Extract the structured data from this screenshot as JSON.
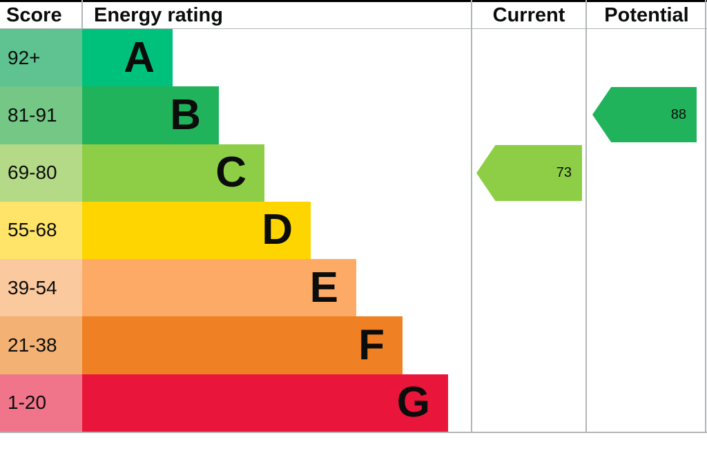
{
  "header": {
    "score": "Score",
    "energy_rating": "Energy rating",
    "current": "Current",
    "potential": "Potential"
  },
  "bands": [
    {
      "score": "92+",
      "letter": "A",
      "color": "#00c17c",
      "tint": "#5ec291"
    },
    {
      "score": "81-91",
      "letter": "B",
      "color": "#21b35b",
      "tint": "#74c784"
    },
    {
      "score": "69-80",
      "letter": "C",
      "color": "#8dce46",
      "tint": "#b4da88"
    },
    {
      "score": "55-68",
      "letter": "D",
      "color": "#ffd500",
      "tint": "#ffe469"
    },
    {
      "score": "39-54",
      "letter": "E",
      "color": "#fcaa65",
      "tint": "#fbc99e"
    },
    {
      "score": "21-38",
      "letter": "F",
      "color": "#ef8023",
      "tint": "#f3b173"
    },
    {
      "score": "1-20",
      "letter": "G",
      "color": "#e9153b",
      "tint": "#f0758a"
    }
  ],
  "current": {
    "value": "73",
    "band": "C"
  },
  "potential": {
    "value": "88",
    "band": "B"
  },
  "chart_data": {
    "type": "bar",
    "title": "Energy rating",
    "columns": [
      "Score",
      "Energy rating",
      "Current",
      "Potential"
    ],
    "categories": [
      "A",
      "B",
      "C",
      "D",
      "E",
      "F",
      "G"
    ],
    "score_ranges": [
      "92+",
      "81-91",
      "69-80",
      "55-68",
      "39-54",
      "21-38",
      "1-20"
    ],
    "band_colors": [
      "#00c17c",
      "#21b35b",
      "#8dce46",
      "#ffd500",
      "#fcaa65",
      "#ef8023",
      "#e9153b"
    ],
    "bar_lengths_relative": [
      1,
      2,
      3,
      4,
      5,
      6,
      7
    ],
    "legend_position": "none",
    "grid": false,
    "markers": [
      {
        "label": "Current",
        "value": 73,
        "band": "C"
      },
      {
        "label": "Potential",
        "value": 88,
        "band": "B"
      }
    ]
  }
}
